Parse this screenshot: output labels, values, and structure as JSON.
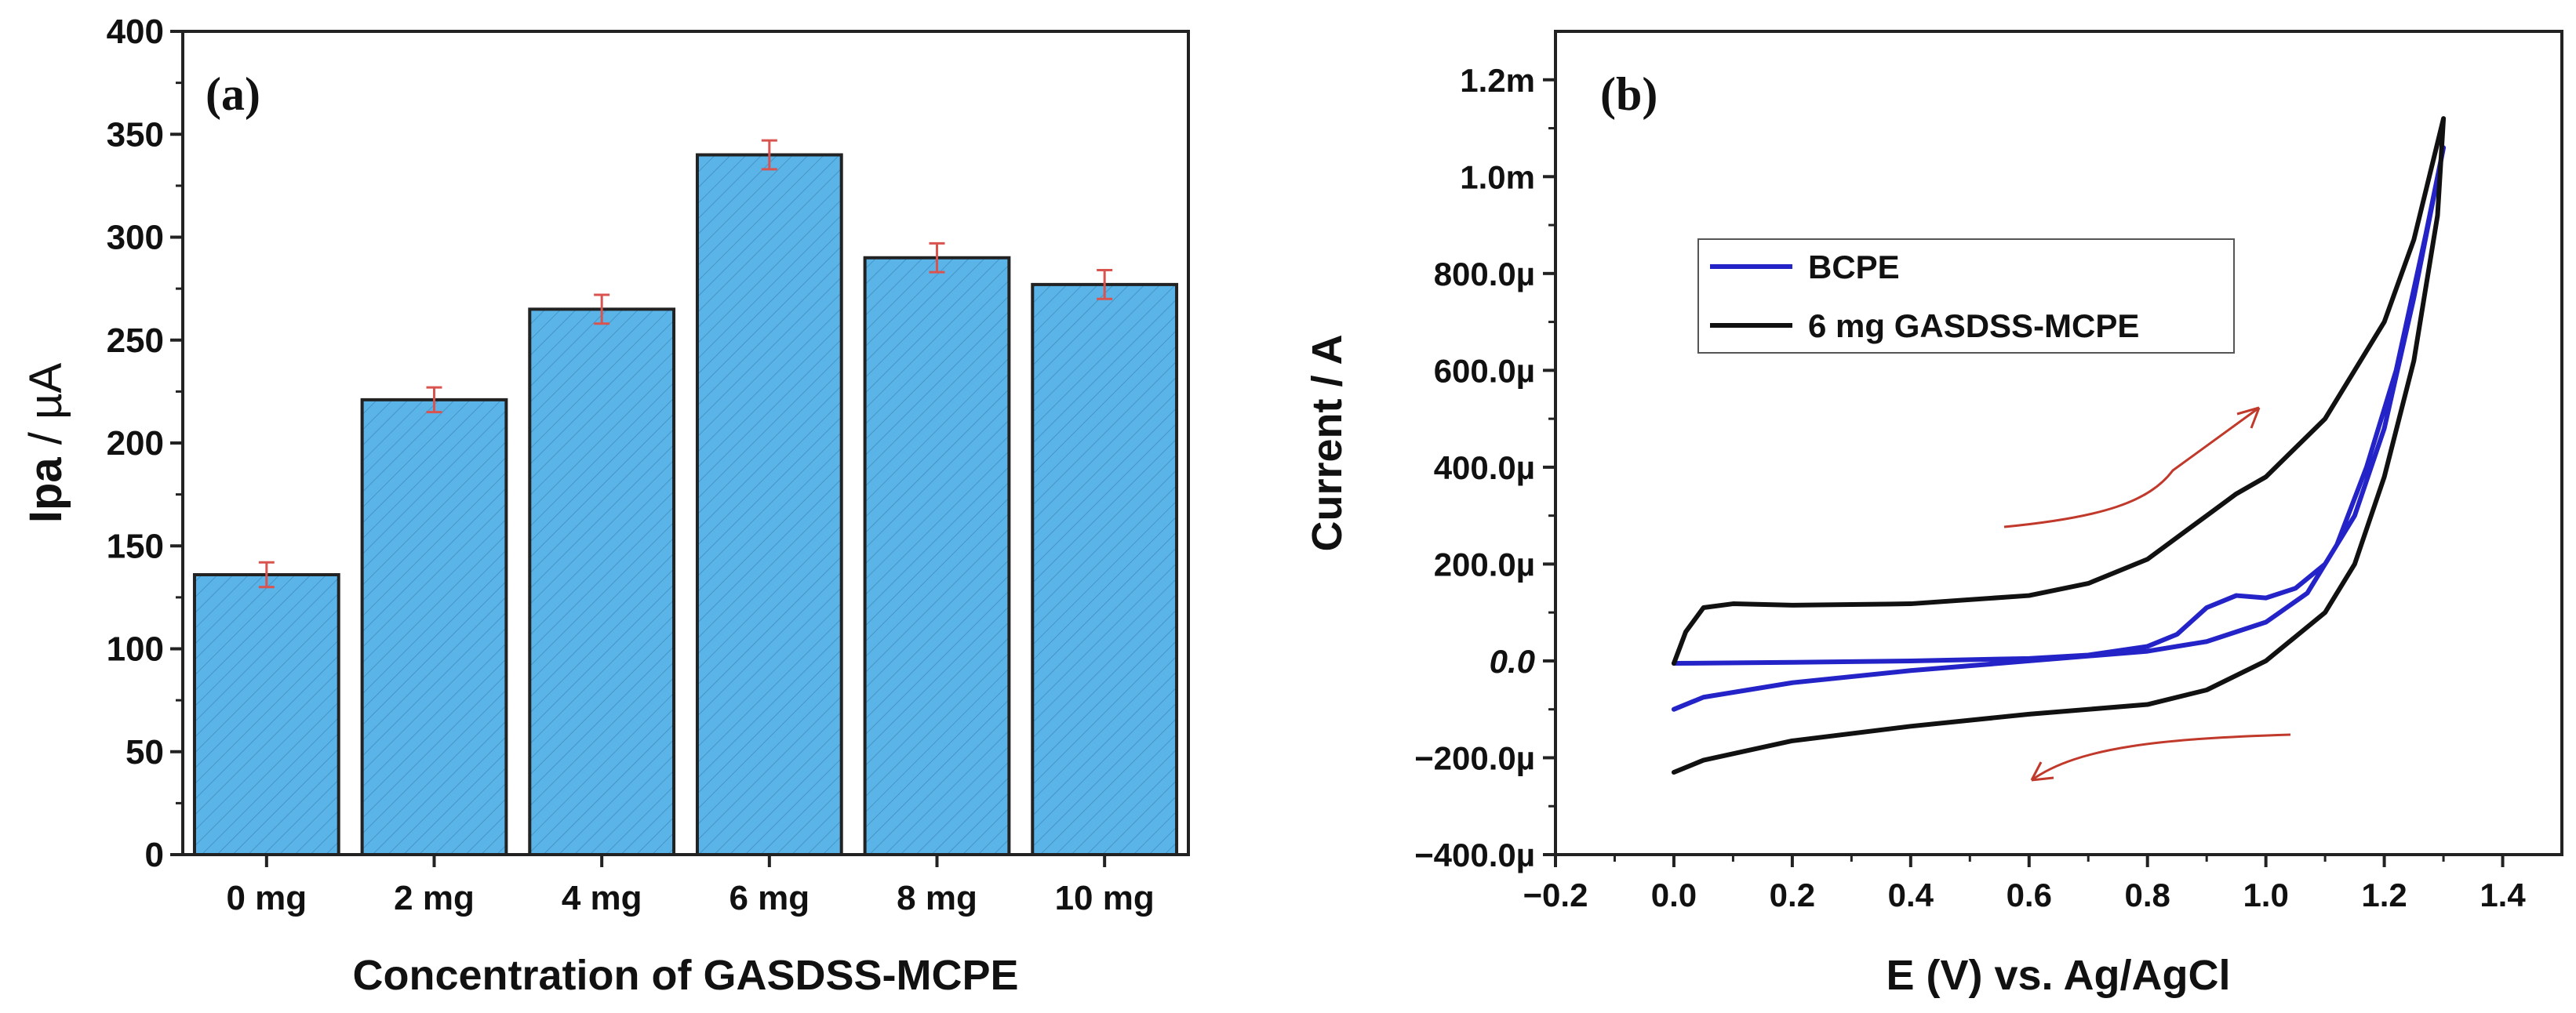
{
  "chart_data": [
    {
      "type": "bar",
      "panel_label": "(a)",
      "categories": [
        "0 mg",
        "2 mg",
        "4 mg",
        "6 mg",
        "8 mg",
        "10 mg"
      ],
      "values": [
        136,
        221,
        265,
        340,
        290,
        277
      ],
      "errors": [
        6,
        6,
        7,
        7,
        7,
        7
      ],
      "xlabel": "Concentration of GASDSS-MCPE",
      "ylabel_main": "Ipa",
      "ylabel_unit": " / µA",
      "ylim": [
        0,
        400
      ],
      "yticks": [
        0,
        50,
        100,
        150,
        200,
        250,
        300,
        350,
        400
      ],
      "bar_color": "#5ab4e8",
      "error_color": "#d9534f"
    },
    {
      "type": "line",
      "panel_label": "(b)",
      "xlabel": "E (V) vs. Ag/AgCl",
      "ylabel": "Current / A",
      "xlim": [
        -0.2,
        1.5
      ],
      "ylim": [
        -400,
        1300
      ],
      "xticks": [
        -0.2,
        0.0,
        0.2,
        0.4,
        0.6,
        0.8,
        1.0,
        1.2,
        1.4
      ],
      "xtick_labels": [
        "−0.2",
        "0.0",
        "0.2",
        "0.4",
        "0.6",
        "0.8",
        "1.0",
        "1.2",
        "1.4"
      ],
      "yticks": [
        -400,
        -200,
        0,
        200,
        400,
        600,
        800,
        1000,
        1200
      ],
      "ytick_labels": [
        "−400.0µ",
        "−200.0µ",
        "0.0",
        "200.0µ",
        "400.0µ",
        "600.0µ",
        "800.0µ",
        "1.0m",
        "1.2m"
      ],
      "y_unit_note": "µA",
      "series": [
        {
          "name": "BCPE",
          "color": "#2323c8",
          "points": [
            [
              0.0,
              -5
            ],
            [
              0.2,
              -3
            ],
            [
              0.4,
              0
            ],
            [
              0.6,
              5
            ],
            [
              0.7,
              12
            ],
            [
              0.8,
              30
            ],
            [
              0.85,
              55
            ],
            [
              0.9,
              110
            ],
            [
              0.95,
              135
            ],
            [
              1.0,
              130
            ],
            [
              1.05,
              150
            ],
            [
              1.1,
              200
            ],
            [
              1.15,
              300
            ],
            [
              1.2,
              480
            ],
            [
              1.25,
              750
            ],
            [
              1.3,
              1060
            ],
            [
              1.27,
              880
            ],
            [
              1.22,
              600
            ],
            [
              1.17,
              400
            ],
            [
              1.12,
              240
            ],
            [
              1.07,
              140
            ],
            [
              1.0,
              80
            ],
            [
              0.9,
              40
            ],
            [
              0.8,
              20
            ],
            [
              0.6,
              0
            ],
            [
              0.4,
              -20
            ],
            [
              0.2,
              -45
            ],
            [
              0.05,
              -75
            ],
            [
              0.0,
              -100
            ]
          ]
        },
        {
          "name": "6 mg GASDSS-MCPE",
          "color": "#111111",
          "points": [
            [
              0.0,
              -5
            ],
            [
              0.02,
              60
            ],
            [
              0.05,
              110
            ],
            [
              0.1,
              118
            ],
            [
              0.2,
              115
            ],
            [
              0.4,
              118
            ],
            [
              0.6,
              135
            ],
            [
              0.7,
              160
            ],
            [
              0.8,
              210
            ],
            [
              0.9,
              300
            ],
            [
              0.95,
              345
            ],
            [
              1.0,
              380
            ],
            [
              1.1,
              500
            ],
            [
              1.2,
              700
            ],
            [
              1.25,
              870
            ],
            [
              1.3,
              1120
            ],
            [
              1.29,
              920
            ],
            [
              1.25,
              620
            ],
            [
              1.2,
              380
            ],
            [
              1.15,
              200
            ],
            [
              1.1,
              100
            ],
            [
              1.0,
              0
            ],
            [
              0.9,
              -60
            ],
            [
              0.8,
              -90
            ],
            [
              0.6,
              -110
            ],
            [
              0.4,
              -135
            ],
            [
              0.2,
              -165
            ],
            [
              0.05,
              -205
            ],
            [
              0.0,
              -230
            ]
          ]
        }
      ],
      "annotations": [
        "forward-scan-arrow",
        "reverse-scan-arrow"
      ],
      "arrow_color": "#c0392b",
      "legend_position": "upper-left"
    }
  ]
}
